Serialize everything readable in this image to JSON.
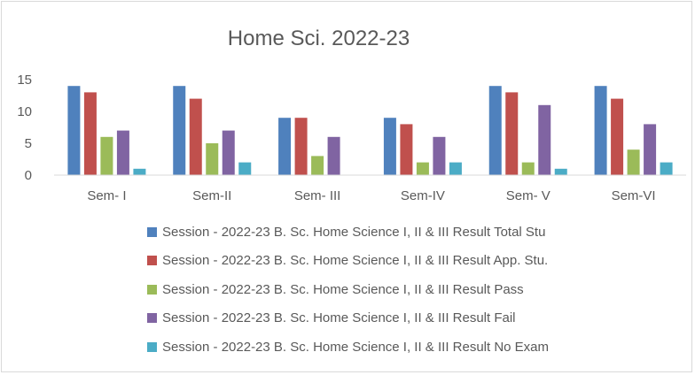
{
  "chart_data": {
    "type": "bar",
    "title": "Home Sci. 2022-23",
    "categories": [
      "Sem- I",
      "Sem-II",
      "Sem- III",
      "Sem-IV",
      "Sem- V",
      "Sem-VI"
    ],
    "yticks": [
      "0",
      "5",
      "10",
      "15"
    ],
    "ylim": [
      0,
      15
    ],
    "grid": false,
    "legend_position": "bottom",
    "series": [
      {
        "name": "Session - 2022-23 B. Sc. Home Science I, II & III Result Total Stu",
        "color": "#4f81bd",
        "values": [
          14,
          14,
          9,
          9,
          14,
          14
        ]
      },
      {
        "name": "Session - 2022-23 B. Sc. Home Science I, II & III Result App. Stu.",
        "color": "#c0504d",
        "values": [
          13,
          12,
          9,
          8,
          13,
          12
        ]
      },
      {
        "name": "Session - 2022-23 B. Sc. Home Science I, II & III Result Pass",
        "color": "#9bbb59",
        "values": [
          6,
          5,
          3,
          2,
          2,
          4
        ]
      },
      {
        "name": "Session - 2022-23 B. Sc. Home Science I, II & III Result Fail",
        "color": "#8064a2",
        "values": [
          7,
          7,
          6,
          6,
          11,
          8
        ]
      },
      {
        "name": "Session - 2022-23 B. Sc. Home Science I, II & III Result No Exam",
        "color": "#4bacc6",
        "values": [
          1,
          2,
          0,
          2,
          1,
          2
        ]
      }
    ]
  }
}
